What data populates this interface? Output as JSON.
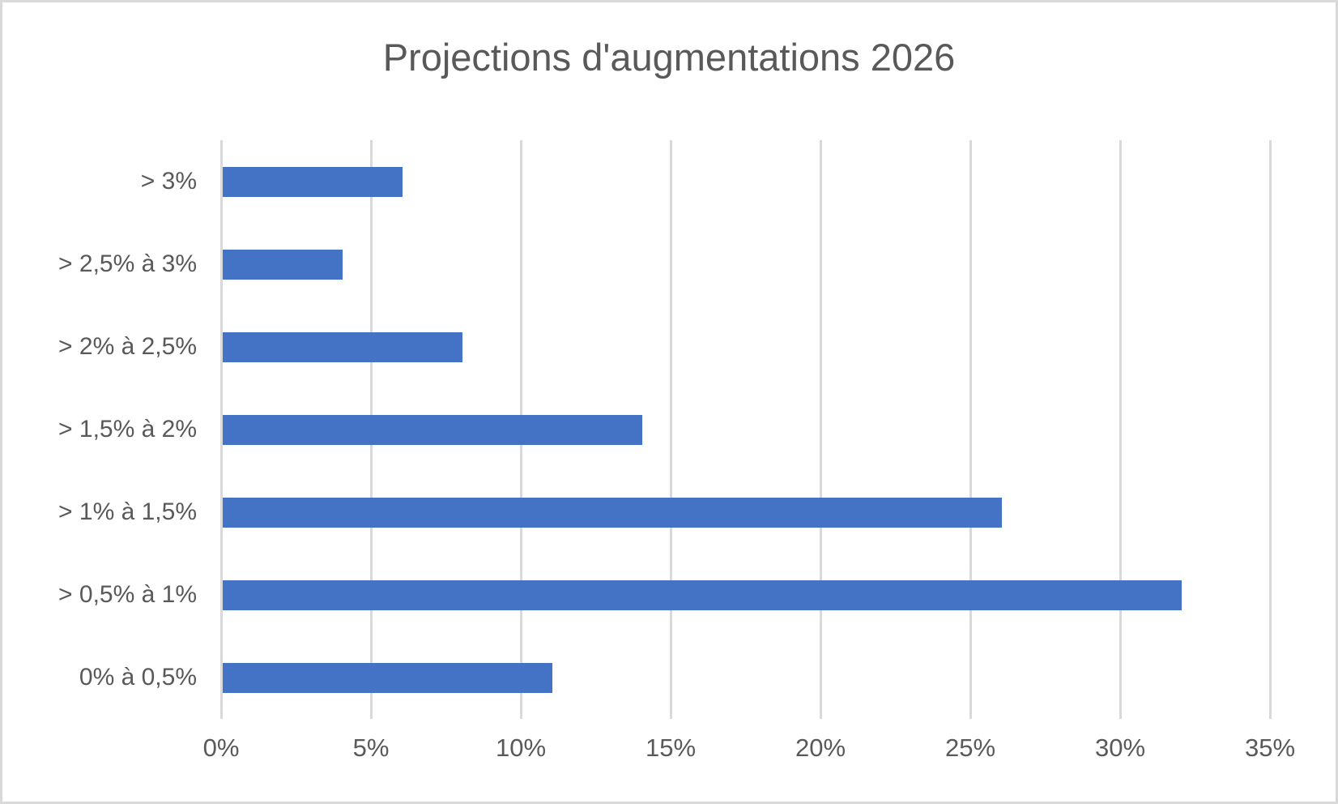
{
  "window": {
    "background_color": "#ffffff",
    "border_color": "#d9d9d9"
  },
  "chart_data": {
    "type": "bar",
    "orientation": "horizontal",
    "title": "Projections d'augmentations 2026",
    "categories": [
      "> 3%",
      "> 2,5% à 3%",
      "> 2% à 2,5%",
      "> 1,5% à 2%",
      "> 1% à 1,5%",
      "> 0,5% à 1%",
      "0% à 0,5%"
    ],
    "values": [
      6,
      4,
      8,
      14,
      26,
      32,
      11
    ],
    "value_unit": "%",
    "xlabel": "",
    "ylabel": "",
    "xlim": [
      0,
      35
    ],
    "x_tick_labels": [
      "0%",
      "5%",
      "10%",
      "15%",
      "20%",
      "25%",
      "30%",
      "35%"
    ],
    "x_tick_values": [
      0,
      5,
      10,
      15,
      20,
      25,
      30,
      35
    ],
    "grid": "vertical-gridlines-on",
    "legend": "none",
    "bar_color": "#4472C4",
    "text_color": "#595959",
    "gridline_color": "#D9D9D9"
  }
}
